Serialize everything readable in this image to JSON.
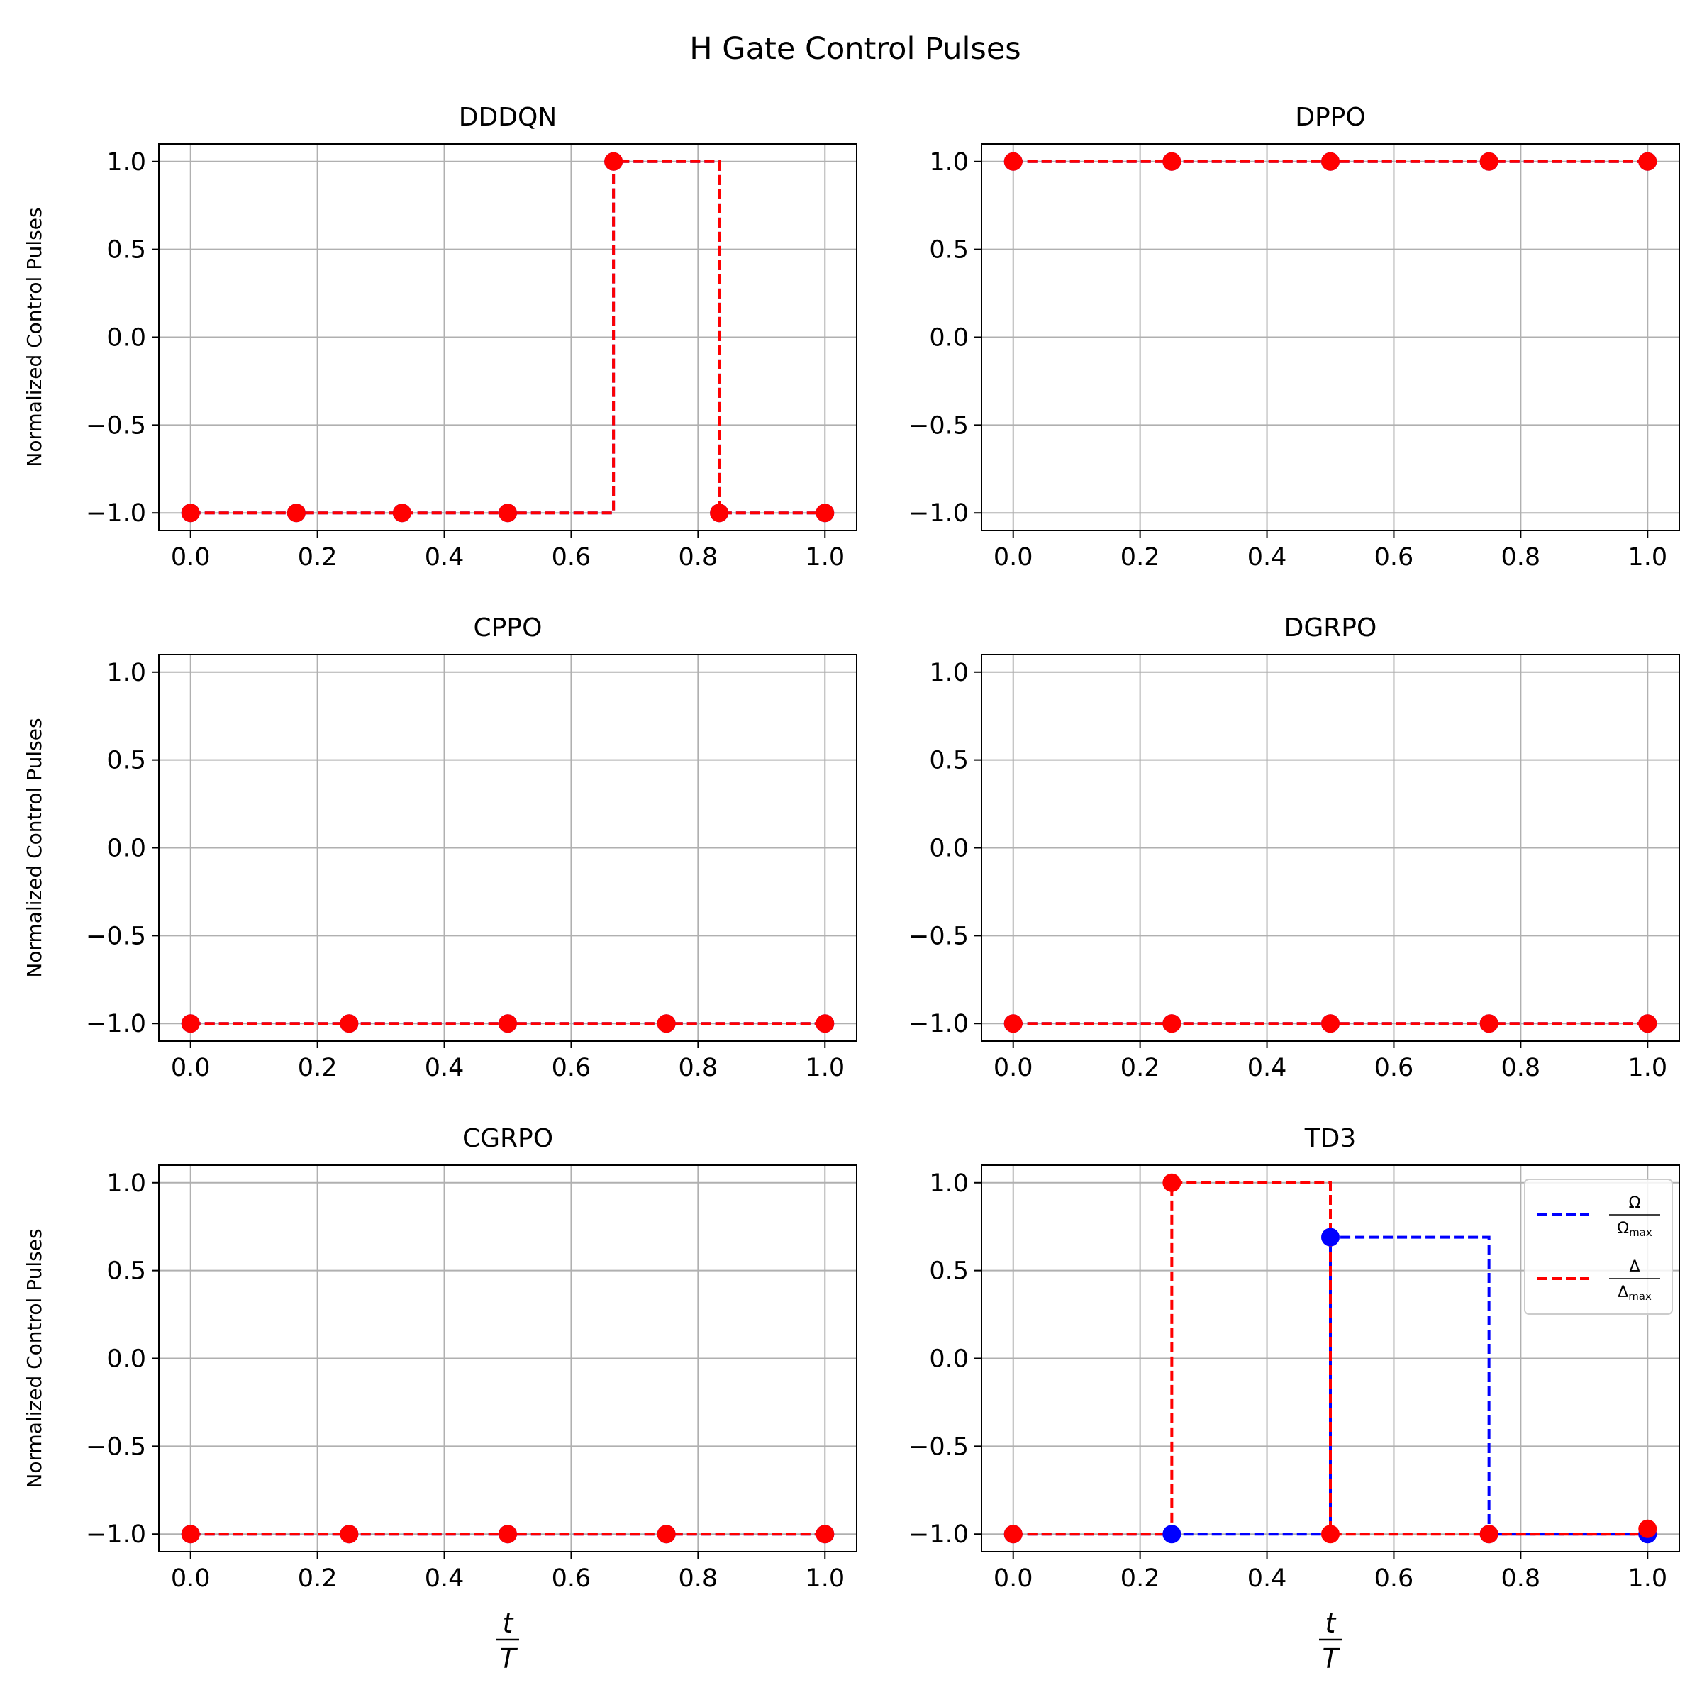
{
  "figure_title": "H Gate Control Pulses",
  "chart_data": [
    {
      "type": "line",
      "title": "DDDQN",
      "ylabel": "Normalized Control Pulses",
      "xlabel": "",
      "xlim": [
        -0.05,
        1.05
      ],
      "ylim": [
        -1.1,
        1.1
      ],
      "xticks": [
        "0.0",
        "0.2",
        "0.4",
        "0.6",
        "0.8",
        "1.0"
      ],
      "yticks": [
        "1.0",
        "0.5",
        "0.0",
        "−0.5",
        "−1.0"
      ],
      "grid": true,
      "step": "post",
      "series": [
        {
          "color": "#0000ff",
          "x": [
            0,
            0.1667,
            0.3333,
            0.5,
            0.6667,
            0.8333,
            1.0
          ],
          "values": [
            -1,
            -1,
            -1,
            -1,
            1,
            -1,
            -1
          ]
        },
        {
          "color": "#ff0000",
          "x": [
            0,
            0.1667,
            0.3333,
            0.5,
            0.6667,
            0.8333,
            1.0
          ],
          "values": [
            -1,
            -1,
            -1,
            -1,
            1,
            -1,
            -1
          ]
        }
      ]
    },
    {
      "type": "line",
      "title": "DPPO",
      "ylabel": "",
      "xlabel": "",
      "xlim": [
        -0.05,
        1.05
      ],
      "ylim": [
        -1.1,
        1.1
      ],
      "xticks": [
        "0.0",
        "0.2",
        "0.4",
        "0.6",
        "0.8",
        "1.0"
      ],
      "yticks": [
        "1.0",
        "0.5",
        "0.0",
        "−0.5",
        "−1.0"
      ],
      "grid": true,
      "step": "post",
      "series": [
        {
          "color": "#0000ff",
          "x": [
            0,
            0.25,
            0.5,
            0.75,
            1.0
          ],
          "values": [
            1,
            1,
            1,
            1,
            1
          ]
        },
        {
          "color": "#ff0000",
          "x": [
            0,
            0.25,
            0.5,
            0.75,
            1.0
          ],
          "values": [
            1,
            1,
            1,
            1,
            1
          ]
        }
      ]
    },
    {
      "type": "line",
      "title": "CPPO",
      "ylabel": "Normalized Control Pulses",
      "xlabel": "",
      "xlim": [
        -0.05,
        1.05
      ],
      "ylim": [
        -1.1,
        1.1
      ],
      "xticks": [
        "0.0",
        "0.2",
        "0.4",
        "0.6",
        "0.8",
        "1.0"
      ],
      "yticks": [
        "1.0",
        "0.5",
        "0.0",
        "−0.5",
        "−1.0"
      ],
      "grid": true,
      "step": "post",
      "series": [
        {
          "color": "#0000ff",
          "x": [
            0,
            0.25,
            0.5,
            0.75,
            1.0
          ],
          "values": [
            -1,
            -1,
            -1,
            -1,
            -1
          ]
        },
        {
          "color": "#ff0000",
          "x": [
            0,
            0.25,
            0.5,
            0.75,
            1.0
          ],
          "values": [
            -1,
            -1,
            -1,
            -1,
            -1
          ]
        }
      ]
    },
    {
      "type": "line",
      "title": "DGRPO",
      "ylabel": "",
      "xlabel": "",
      "xlim": [
        -0.05,
        1.05
      ],
      "ylim": [
        -1.1,
        1.1
      ],
      "xticks": [
        "0.0",
        "0.2",
        "0.4",
        "0.6",
        "0.8",
        "1.0"
      ],
      "yticks": [
        "1.0",
        "0.5",
        "0.0",
        "−0.5",
        "−1.0"
      ],
      "grid": true,
      "step": "post",
      "series": [
        {
          "color": "#0000ff",
          "x": [
            0,
            0.25,
            0.5,
            0.75,
            1.0
          ],
          "values": [
            -1,
            -1,
            -1,
            -1,
            -1
          ]
        },
        {
          "color": "#ff0000",
          "x": [
            0,
            0.25,
            0.5,
            0.75,
            1.0
          ],
          "values": [
            -1,
            -1,
            -1,
            -1,
            -1
          ]
        }
      ]
    },
    {
      "type": "line",
      "title": "CGRPO",
      "ylabel": "Normalized Control Pulses",
      "xlabel": "t/T",
      "xlim": [
        -0.05,
        1.05
      ],
      "ylim": [
        -1.1,
        1.1
      ],
      "xticks": [
        "0.0",
        "0.2",
        "0.4",
        "0.6",
        "0.8",
        "1.0"
      ],
      "yticks": [
        "1.0",
        "0.5",
        "0.0",
        "−0.5",
        "−1.0"
      ],
      "grid": true,
      "step": "post",
      "series": [
        {
          "color": "#0000ff",
          "x": [
            0,
            0.25,
            0.5,
            0.75,
            1.0
          ],
          "values": [
            -1,
            -1,
            -1,
            -1,
            -1
          ]
        },
        {
          "color": "#ff0000",
          "x": [
            0,
            0.25,
            0.5,
            0.75,
            1.0
          ],
          "values": [
            -1,
            -1,
            -1,
            -1,
            -1
          ]
        }
      ]
    },
    {
      "type": "line",
      "title": "TD3",
      "ylabel": "",
      "xlabel": "t/T",
      "xlim": [
        -0.05,
        1.05
      ],
      "ylim": [
        -1.1,
        1.1
      ],
      "xticks": [
        "0.0",
        "0.2",
        "0.4",
        "0.6",
        "0.8",
        "1.0"
      ],
      "yticks": [
        "1.0",
        "0.5",
        "0.0",
        "−0.5",
        "−1.0"
      ],
      "grid": true,
      "step": "post",
      "legend_position": "top-right",
      "series": [
        {
          "name": "Ω/Ωmax",
          "color": "#0000ff",
          "x": [
            0,
            0.25,
            0.5,
            0.75,
            1.0
          ],
          "values": [
            -1,
            -1,
            0.69,
            -1,
            -1
          ]
        },
        {
          "name": "Δ/Δmax",
          "color": "#ff0000",
          "x": [
            0,
            0.25,
            0.5,
            0.75,
            1.0
          ],
          "values": [
            -1,
            1,
            -1,
            -1,
            -0.97
          ]
        }
      ]
    }
  ]
}
